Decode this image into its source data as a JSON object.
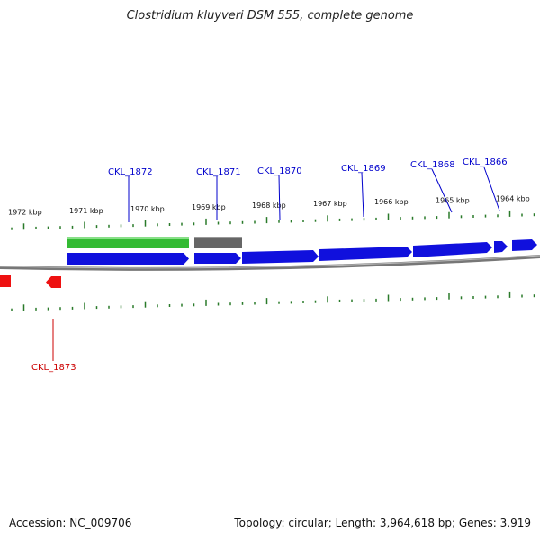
{
  "title": "Clostridium kluyveri DSM 555, complete genome",
  "footer": {
    "accession": "Accession: NC_009706",
    "summary": "Topology: circular; Length: 3,964,618 bp; Genes: 3,919"
  },
  "scale_labels": [
    "1972 kbp",
    "1971 kbp",
    "1970 kbp",
    "1969 kbp",
    "1968 kbp",
    "1967 kbp",
    "1966 kbp",
    "1965 kbp",
    "1964 kbp"
  ],
  "genes": [
    {
      "label": "CKL_1872",
      "strand": "plus",
      "color": "#0000cc"
    },
    {
      "label": "CKL_1871",
      "strand": "plus",
      "color": "#0000cc"
    },
    {
      "label": "CKL_1870",
      "strand": "plus",
      "color": "#0000cc"
    },
    {
      "label": "CKL_1869",
      "strand": "plus",
      "color": "#0000cc"
    },
    {
      "label": "CKL_1868",
      "strand": "plus",
      "color": "#0000cc"
    },
    {
      "label": "CKL_1866",
      "strand": "plus",
      "color": "#0000cc"
    },
    {
      "label": "CKL_1873",
      "strand": "minus",
      "color": "#cc0000"
    }
  ],
  "colors": {
    "plus_strand": "#1010dd",
    "minus_strand": "#ee1111",
    "rna_feature": "#33bb33",
    "other_feature": "#666666",
    "backbone": "#888888",
    "ticks": "#2a7a2a",
    "gene_label_plus": "#0000cc",
    "gene_label_minus": "#cc0000"
  }
}
